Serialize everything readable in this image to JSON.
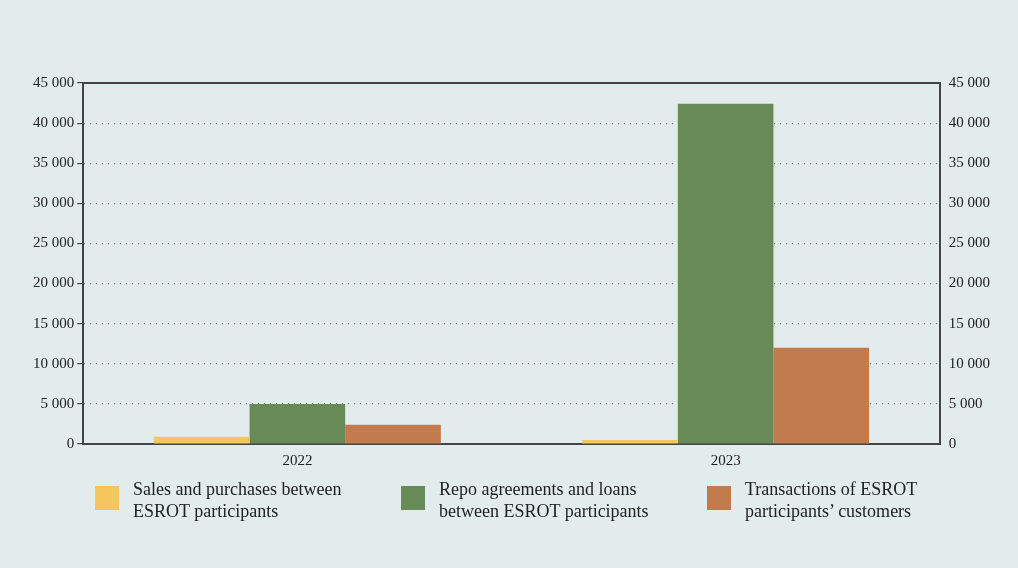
{
  "chart_data": {
    "type": "bar",
    "categories": [
      "2022",
      "2023"
    ],
    "series": [
      {
        "name": "Sales and purchases between ESROT participants",
        "color": "#f4c75c",
        "values": [
          900,
          500
        ]
      },
      {
        "name": "Repo agreements and loans between ESROT participants",
        "color": "#688a56",
        "values": [
          5000,
          42400
        ]
      },
      {
        "name": "Transactions of ESROT participants’ customers",
        "color": "#c27b4c",
        "values": [
          2400,
          12000
        ]
      }
    ],
    "ylim": [
      0,
      45000
    ],
    "yticks": [
      {
        "value": 0,
        "label": "0"
      },
      {
        "value": 5000,
        "label": "5 000"
      },
      {
        "value": 10000,
        "label": "10 000"
      },
      {
        "value": 15000,
        "label": "15 000"
      },
      {
        "value": 20000,
        "label": "20 000"
      },
      {
        "value": 25000,
        "label": "25 000"
      },
      {
        "value": 30000,
        "label": "30 000"
      },
      {
        "value": 35000,
        "label": "35 000"
      },
      {
        "value": 40000,
        "label": "40 000"
      },
      {
        "value": 45000,
        "label": "45 000"
      }
    ],
    "y2lim": [
      0,
      45000
    ],
    "y2ticks": [
      {
        "value": 0,
        "label": "0"
      },
      {
        "value": 5000,
        "label": "5 000"
      },
      {
        "value": 10000,
        "label": "10 000"
      },
      {
        "value": 15000,
        "label": "15 000"
      },
      {
        "value": 20000,
        "label": "20 000"
      },
      {
        "value": 25000,
        "label": "25 000"
      },
      {
        "value": 30000,
        "label": "30 000"
      },
      {
        "value": 35000,
        "label": "35 000"
      },
      {
        "value": 40000,
        "label": "40 000"
      },
      {
        "value": 45000,
        "label": "45 000"
      }
    ],
    "grid": "y",
    "legend": "bottom"
  }
}
